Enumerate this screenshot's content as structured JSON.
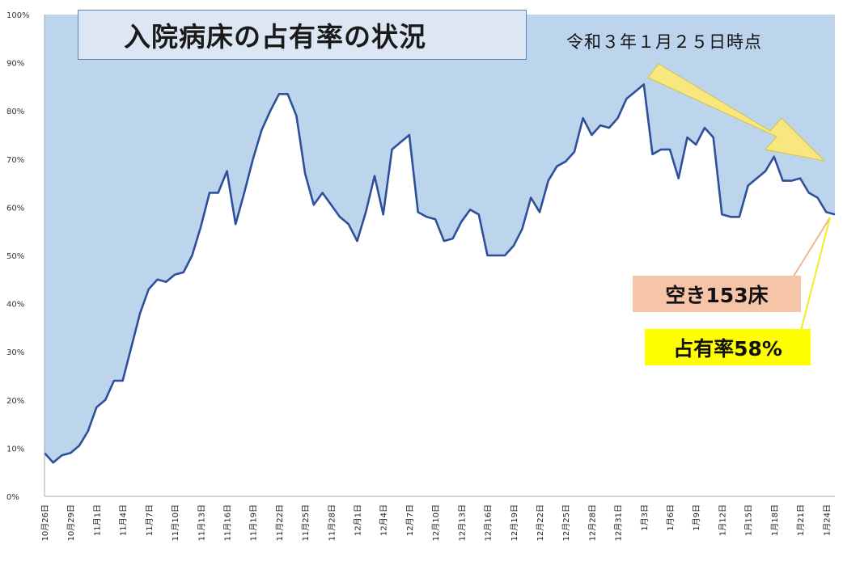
{
  "header": {
    "title": "入院病床の占有率の状況",
    "timestamp": "令和３年１月２５日時点"
  },
  "callouts": {
    "vacant": "空き153床",
    "occupancy": "占有率58%"
  },
  "colors": {
    "area_fill": "#bcd5ec",
    "line": "#2e4f9a",
    "title_box": "#dce7f3",
    "vacant_box": "#f6c4a6",
    "occupancy_box": "#ffff00",
    "arrow": "#f7e77e"
  },
  "chart_data": {
    "type": "area",
    "y_ticks": [
      "0%",
      "10%",
      "20%",
      "30%",
      "40%",
      "50%",
      "60%",
      "70%",
      "80%",
      "90%",
      "100%"
    ],
    "ylim": [
      0,
      100
    ],
    "x_tick_labels": [
      "10月26日",
      "10月29日",
      "11月1日",
      "11月4日",
      "11月7日",
      "11月10日",
      "11月13日",
      "11月16日",
      "11月19日",
      "11月22日",
      "11月25日",
      "11月28日",
      "12月1日",
      "12月4日",
      "12月7日",
      "12月10日",
      "12月13日",
      "12月16日",
      "12月19日",
      "12月22日",
      "12月25日",
      "12月28日",
      "12月31日",
      "1月3日",
      "1月6日",
      "1月9日",
      "1月12日",
      "1月15日",
      "1月18日",
      "1月21日",
      "1月24日"
    ],
    "x_tick_every": 3,
    "grid": false,
    "values": [
      9,
      7,
      8.5,
      9,
      10.5,
      13.5,
      18.5,
      20,
      24,
      24,
      31,
      38,
      43,
      45,
      44.5,
      46,
      46.5,
      50,
      56,
      63,
      63,
      67.5,
      56.5,
      63,
      70,
      76,
      80,
      83.5,
      83.5,
      79,
      67,
      60.5,
      63,
      60.5,
      58,
      56.5,
      53,
      59,
      66.5,
      58.5,
      72,
      73.5,
      75,
      59,
      58,
      57.5,
      53,
      53.5,
      57,
      59.5,
      58.5,
      50,
      50,
      50,
      52,
      55.5,
      62,
      59,
      65.5,
      68.5,
      69.5,
      71.5,
      78.5,
      75,
      77,
      76.5,
      78.5,
      82.5,
      84,
      85.5,
      71,
      72,
      72,
      66,
      74.5,
      73,
      76.5,
      74.5,
      58.5,
      58,
      58,
      64.5,
      66,
      67.5,
      70.5,
      65.5,
      65.5,
      66,
      63,
      62,
      59,
      58.5
    ]
  }
}
